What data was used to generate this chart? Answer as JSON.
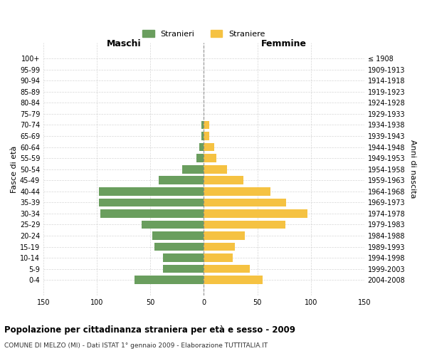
{
  "age_groups": [
    "100+",
    "95-99",
    "90-94",
    "85-89",
    "80-84",
    "75-79",
    "70-74",
    "65-69",
    "60-64",
    "55-59",
    "50-54",
    "45-49",
    "40-44",
    "35-39",
    "30-34",
    "25-29",
    "20-24",
    "15-19",
    "10-14",
    "5-9",
    "0-4"
  ],
  "birth_years": [
    "≤ 1908",
    "1909-1913",
    "1914-1918",
    "1919-1923",
    "1924-1928",
    "1929-1933",
    "1934-1938",
    "1939-1943",
    "1944-1948",
    "1949-1953",
    "1954-1958",
    "1959-1963",
    "1964-1968",
    "1969-1973",
    "1974-1978",
    "1979-1983",
    "1984-1988",
    "1989-1993",
    "1994-1998",
    "1999-2003",
    "2004-2008"
  ],
  "maschi": [
    0,
    0,
    0,
    0,
    0,
    0,
    2,
    2,
    4,
    7,
    20,
    42,
    98,
    98,
    97,
    58,
    48,
    46,
    38,
    38,
    65
  ],
  "femmine": [
    0,
    0,
    0,
    0,
    0,
    0,
    5,
    5,
    10,
    12,
    22,
    37,
    62,
    77,
    97,
    76,
    38,
    29,
    27,
    43,
    55
  ],
  "maschi_color": "#6a9e5e",
  "femmine_color": "#f5c242",
  "bg_color": "#ffffff",
  "grid_color": "#cccccc",
  "title": "Popolazione per cittadinanza straniera per età e sesso - 2009",
  "subtitle": "COMUNE DI MELZO (MI) - Dati ISTAT 1° gennaio 2009 - Elaborazione TUTTITALIA.IT",
  "xlabel_left": "Maschi",
  "xlabel_right": "Femmine",
  "ylabel_left": "Fasce di età",
  "ylabel_right": "Anni di nascita",
  "legend_stranieri": "Stranieri",
  "legend_straniere": "Straniere",
  "xlim": 150
}
